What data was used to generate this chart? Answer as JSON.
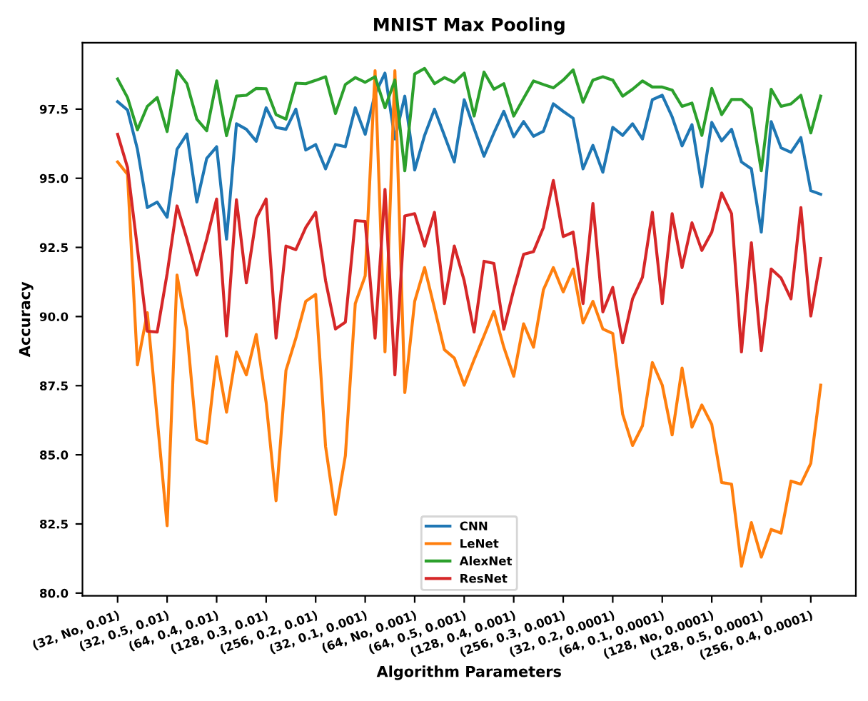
{
  "chart_data": {
    "type": "line",
    "title": "MNIST Max Pooling",
    "xlabel": "Algorithm Parameters",
    "ylabel": "Accuracy",
    "categories": [
      "(32, No, 0.01)",
      null,
      null,
      null,
      null,
      "(32, 0.5, 0.01)",
      null,
      null,
      null,
      null,
      "(64, 0.4, 0.01)",
      null,
      null,
      null,
      null,
      "(128, 0.3, 0.01)",
      null,
      null,
      null,
      null,
      "(256, 0.2, 0.01)",
      null,
      null,
      null,
      null,
      "(32, 0.1, 0.001)",
      null,
      null,
      null,
      null,
      "(64, No, 0.001)",
      null,
      null,
      null,
      null,
      "(64, 0.5, 0.001)",
      null,
      null,
      null,
      null,
      "(128, 0.4, 0.001)",
      null,
      null,
      null,
      null,
      "(256, 0.3, 0.001)",
      null,
      null,
      null,
      null,
      "(32, 0.2, 0.0001)",
      null,
      null,
      null,
      null,
      "(64, 0.1, 0.0001)",
      null,
      null,
      null,
      null,
      "(128, No, 0.0001)",
      null,
      null,
      null,
      null,
      "(128, 0.5, 0.0001)",
      null,
      null,
      null,
      null,
      "(256, 0.4, 0.0001)",
      null
    ],
    "series": [
      {
        "name": "CNN",
        "color": "#1f77b4",
        "values": [
          97.77,
          97.47,
          96.05,
          93.94,
          94.14,
          93.59,
          96.05,
          96.6,
          94.14,
          95.72,
          96.14,
          92.8,
          96.97,
          96.77,
          96.34,
          97.55,
          96.84,
          96.77,
          97.5,
          96.02,
          96.22,
          95.34,
          96.22,
          96.14,
          97.55,
          96.59,
          98.05,
          98.8,
          96.42,
          97.97,
          95.3,
          96.55,
          97.5,
          96.55,
          95.59,
          97.84,
          96.8,
          95.8,
          96.64,
          97.42,
          96.5,
          97.05,
          96.52,
          96.7,
          97.69,
          97.42,
          97.17,
          95.34,
          96.19,
          95.22,
          96.84,
          96.55,
          96.97,
          96.42,
          97.84,
          98.0,
          97.22,
          96.17,
          96.94,
          94.69,
          97.02,
          96.35,
          96.77,
          95.59,
          95.34,
          93.05,
          97.05,
          96.1,
          95.94,
          96.47,
          94.55,
          94.42
        ]
      },
      {
        "name": "LeNet",
        "color": "#ff7f0e",
        "values": [
          95.59,
          95.14,
          88.25,
          90.14,
          86.3,
          82.44,
          91.5,
          89.47,
          85.55,
          85.42,
          88.55,
          86.54,
          88.72,
          87.89,
          89.35,
          86.89,
          83.34,
          88.05,
          89.22,
          90.55,
          90.8,
          85.3,
          82.84,
          84.97,
          90.47,
          91.47,
          98.89,
          88.72,
          98.89,
          87.25,
          90.55,
          91.77,
          90.3,
          88.8,
          88.5,
          87.52,
          88.44,
          89.3,
          90.19,
          88.89,
          87.84,
          89.74,
          88.89,
          90.97,
          91.77,
          90.89,
          91.72,
          89.77,
          90.55,
          89.55,
          89.39,
          86.47,
          85.34,
          86.05,
          88.34,
          87.52,
          85.72,
          88.14,
          86.0,
          86.8,
          86.1,
          84.0,
          83.94,
          80.97,
          82.55,
          81.3,
          82.3,
          82.17,
          84.05,
          83.94,
          84.69,
          87.52
        ]
      },
      {
        "name": "AlexNet",
        "color": "#2ca02c",
        "values": [
          98.59,
          97.92,
          96.75,
          97.6,
          97.92,
          96.69,
          98.89,
          98.42,
          97.14,
          96.72,
          98.52,
          96.54,
          97.97,
          98.0,
          98.25,
          98.24,
          97.3,
          97.14,
          98.44,
          98.42,
          98.54,
          98.67,
          97.34,
          98.39,
          98.64,
          98.47,
          98.67,
          97.55,
          98.55,
          95.27,
          98.77,
          98.97,
          98.42,
          98.64,
          98.47,
          98.8,
          97.25,
          98.84,
          98.22,
          98.42,
          97.25,
          97.89,
          98.52,
          98.39,
          98.27,
          98.55,
          98.92,
          97.75,
          98.55,
          98.67,
          98.55,
          97.97,
          98.22,
          98.52,
          98.3,
          98.3,
          98.19,
          97.6,
          97.72,
          96.55,
          98.25,
          97.3,
          97.85,
          97.85,
          97.52,
          95.27,
          98.22,
          97.6,
          97.69,
          98.0,
          96.64,
          97.97
        ]
      },
      {
        "name": "ResNet",
        "color": "#d62728",
        "values": [
          96.59,
          95.39,
          92.47,
          89.47,
          89.44,
          91.55,
          94.0,
          92.8,
          91.5,
          92.8,
          94.25,
          89.3,
          94.22,
          91.22,
          93.55,
          94.25,
          89.22,
          92.55,
          92.42,
          93.22,
          93.77,
          91.3,
          89.55,
          89.8,
          93.47,
          93.44,
          89.22,
          94.6,
          87.89,
          93.64,
          93.72,
          92.55,
          93.77,
          90.47,
          92.55,
          91.3,
          89.44,
          92.0,
          91.92,
          89.54,
          90.97,
          92.25,
          92.35,
          93.22,
          94.92,
          92.89,
          93.05,
          90.47,
          94.09,
          90.17,
          91.05,
          89.05,
          90.64,
          91.42,
          93.77,
          90.47,
          93.72,
          91.77,
          93.39,
          92.39,
          93.05,
          94.47,
          93.72,
          88.72,
          92.67,
          88.77,
          91.72,
          91.39,
          90.64,
          93.94,
          90.02,
          92.1
        ]
      }
    ],
    "ylim": [
      79.9,
      99.9
    ],
    "yticks": [
      {
        "value": 80,
        "label": "80.0"
      },
      {
        "value": 82.5,
        "label": "82.5"
      },
      {
        "value": 85,
        "label": "85.0"
      },
      {
        "value": 87.5,
        "label": "87.5"
      },
      {
        "value": 90,
        "label": "90.0"
      },
      {
        "value": 92.5,
        "label": "92.5"
      },
      {
        "value": 95,
        "label": "95.0"
      },
      {
        "value": 97.5,
        "label": "97.5"
      }
    ],
    "legend": "bottom",
    "grid": false,
    "marker": "none",
    "line_style": "solid"
  }
}
